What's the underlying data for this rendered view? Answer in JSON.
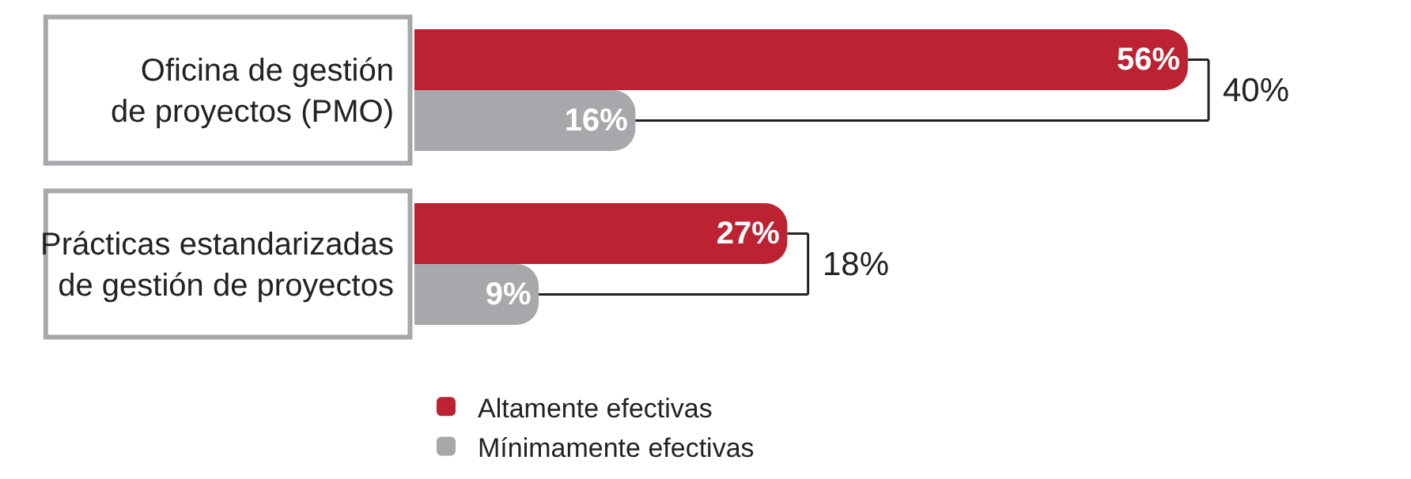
{
  "chart_data": {
    "type": "bar",
    "orientation": "horizontal",
    "categories": [
      "Oficina de gestión\nde proyectos (PMO)",
      "Prácticas estandarizadas\nde gestión de proyectos"
    ],
    "series": [
      {
        "name": "Altamente efectivas",
        "color": "#bc2232",
        "values": [
          56,
          27
        ],
        "value_labels": [
          "56%",
          "27%"
        ]
      },
      {
        "name": "Mínimamente efectivas",
        "color": "#a7a8ab",
        "values": [
          16,
          9
        ],
        "value_labels": [
          "16%",
          "9%"
        ]
      }
    ],
    "annotations": [
      "40%",
      "18%"
    ],
    "tick_labels": "y",
    "legend": "bottom"
  }
}
